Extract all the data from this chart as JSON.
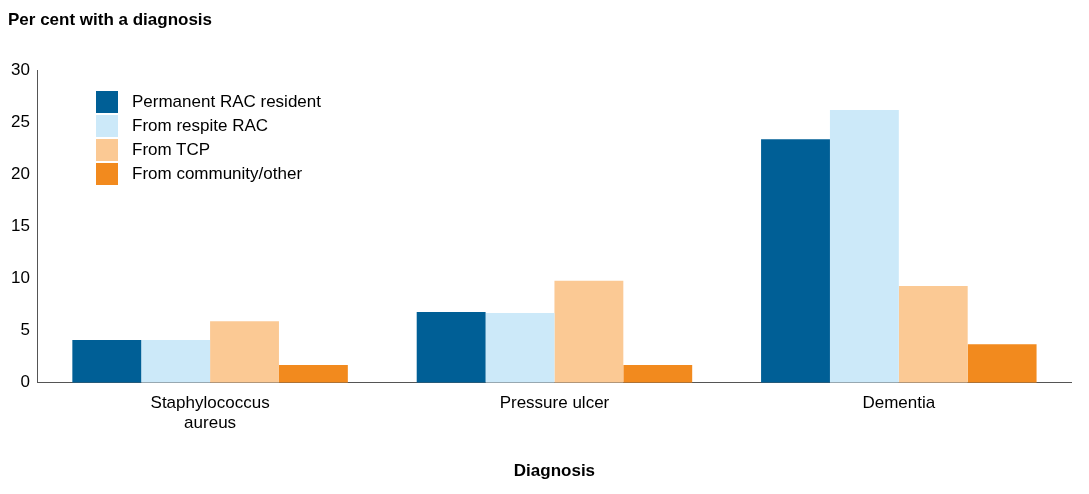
{
  "chart_data": {
    "type": "bar",
    "ylabel": "Per cent with a diagnosis",
    "xlabel": "Diagnosis",
    "categories": [
      "Staphylococcus aureus",
      "Pressure ulcer",
      "Dementia"
    ],
    "ylim": [
      0,
      30
    ],
    "yticks": [
      0,
      5,
      10,
      15,
      20,
      25,
      30
    ],
    "grid": false,
    "legend": "top left",
    "series": [
      {
        "name": "Permanent RAC resident",
        "color": "#005f96",
        "values": [
          4.1,
          6.8,
          23.4
        ]
      },
      {
        "name": "From respite RAC",
        "color": "#cce9f9",
        "values": [
          4.1,
          6.7,
          26.2
        ]
      },
      {
        "name": "From TCP",
        "color": "#fbc994",
        "values": [
          5.9,
          9.8,
          9.3
        ]
      },
      {
        "name": "From community/other",
        "color": "#f28a1e",
        "values": [
          1.7,
          1.7,
          3.7
        ]
      }
    ]
  }
}
